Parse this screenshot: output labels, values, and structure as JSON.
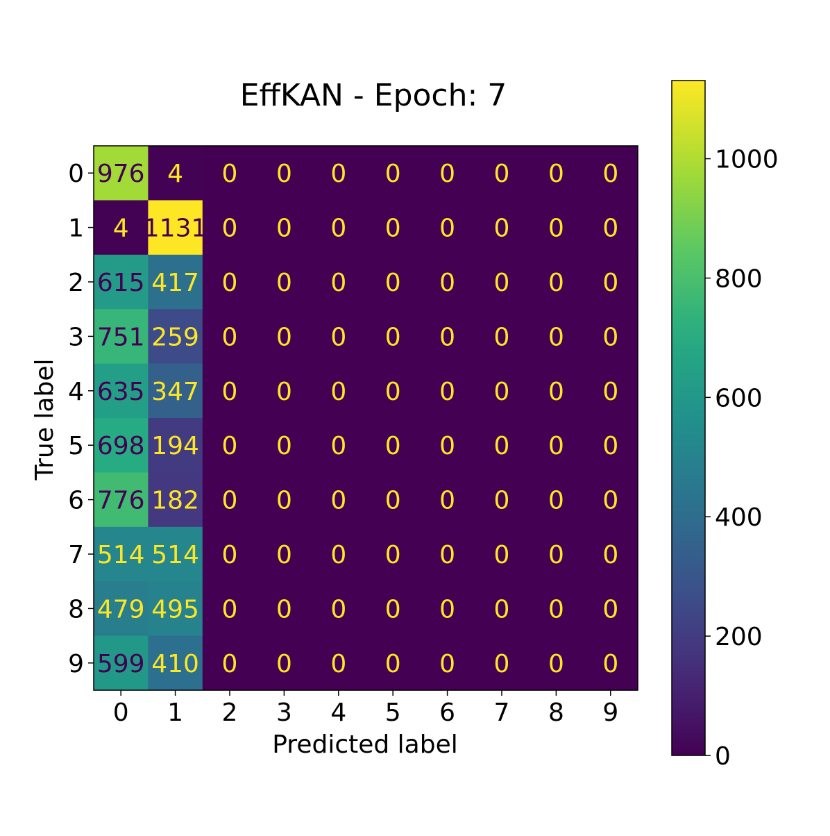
{
  "chart_data": {
    "type": "heatmap",
    "title": "EffKAN - Epoch: 7",
    "xlabel": "Predicted label",
    "ylabel": "True label",
    "x_categories": [
      "0",
      "1",
      "2",
      "3",
      "4",
      "5",
      "6",
      "7",
      "8",
      "9"
    ],
    "y_categories": [
      "0",
      "1",
      "2",
      "3",
      "4",
      "5",
      "6",
      "7",
      "8",
      "9"
    ],
    "matrix": [
      [
        976,
        4,
        0,
        0,
        0,
        0,
        0,
        0,
        0,
        0
      ],
      [
        4,
        1131,
        0,
        0,
        0,
        0,
        0,
        0,
        0,
        0
      ],
      [
        615,
        417,
        0,
        0,
        0,
        0,
        0,
        0,
        0,
        0
      ],
      [
        751,
        259,
        0,
        0,
        0,
        0,
        0,
        0,
        0,
        0
      ],
      [
        635,
        347,
        0,
        0,
        0,
        0,
        0,
        0,
        0,
        0
      ],
      [
        698,
        194,
        0,
        0,
        0,
        0,
        0,
        0,
        0,
        0
      ],
      [
        776,
        182,
        0,
        0,
        0,
        0,
        0,
        0,
        0,
        0
      ],
      [
        514,
        514,
        0,
        0,
        0,
        0,
        0,
        0,
        0,
        0
      ],
      [
        479,
        495,
        0,
        0,
        0,
        0,
        0,
        0,
        0,
        0
      ],
      [
        599,
        410,
        0,
        0,
        0,
        0,
        0,
        0,
        0,
        0
      ]
    ],
    "colormap": "viridis",
    "colorbar": {
      "range": [
        0,
        1131
      ],
      "ticks": [
        0,
        200,
        400,
        600,
        800,
        1000
      ],
      "tick_labels": [
        "0",
        "200",
        "400",
        "600",
        "800",
        "1000"
      ]
    },
    "value_text_colors": {
      "on_dark": "#fde725",
      "on_light": "#440154"
    }
  }
}
